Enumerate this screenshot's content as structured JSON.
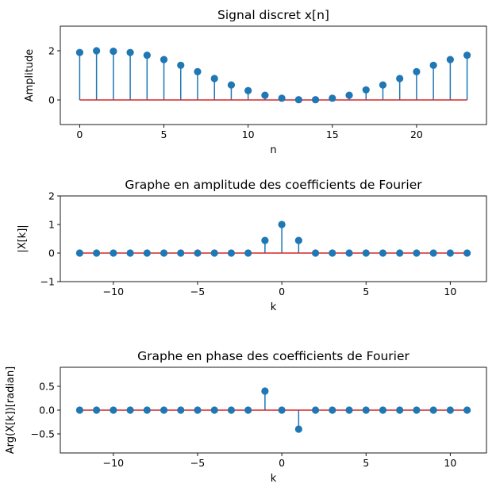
{
  "chart_data": [
    {
      "type": "stem",
      "title": "Signal discret x[n]",
      "xlabel": "n",
      "ylabel": "Amplitude",
      "xlim": [
        -1.15,
        24.15
      ],
      "ylim": [
        -1,
        3
      ],
      "xticks": [
        0,
        5,
        10,
        15,
        20
      ],
      "yticks": [
        0,
        2
      ],
      "x": [
        0,
        1,
        2,
        3,
        4,
        5,
        6,
        7,
        8,
        9,
        10,
        11,
        12,
        13,
        14,
        15,
        16,
        17,
        18,
        19,
        20,
        21,
        22,
        23
      ],
      "values": [
        1.93,
        2.0,
        1.98,
        1.93,
        1.82,
        1.64,
        1.41,
        1.15,
        0.87,
        0.61,
        0.38,
        0.19,
        0.07,
        0.01,
        0.01,
        0.07,
        0.19,
        0.41,
        0.61,
        0.87,
        1.15,
        1.41,
        1.64,
        1.82
      ],
      "baseline": 0,
      "grid": false,
      "colors": {
        "stem": "#1f77b4",
        "baseline": "#d62728"
      }
    },
    {
      "type": "stem",
      "title": "Graphe en amplitude des coefficients de Fourier",
      "xlabel": "k",
      "ylabel": "|X[k]|",
      "xlim": [
        -13.15,
        12.15
      ],
      "ylim": [
        -1,
        2
      ],
      "xticks": [
        -10,
        -5,
        0,
        5,
        10
      ],
      "xtick_labels": [
        "−10",
        "−5",
        "0",
        "5",
        "10"
      ],
      "yticks": [
        -1,
        0,
        1,
        2
      ],
      "ytick_labels": [
        "−1",
        "0",
        "1",
        "2"
      ],
      "x": [
        -12,
        -11,
        -10,
        -9,
        -8,
        -7,
        -6,
        -5,
        -4,
        -3,
        -2,
        -1,
        0,
        1,
        2,
        3,
        4,
        5,
        6,
        7,
        8,
        9,
        10,
        11
      ],
      "values": [
        0,
        0,
        0,
        0,
        0,
        0,
        0,
        0,
        0,
        0,
        0,
        0.44,
        1.0,
        0.44,
        0,
        0,
        0,
        0,
        0,
        0,
        0,
        0,
        0,
        0
      ],
      "baseline": 0,
      "grid": false,
      "colors": {
        "stem": "#1f77b4",
        "baseline": "#d62728"
      }
    },
    {
      "type": "stem",
      "title": "Graphe en phase des coefficients de Fourier",
      "xlabel": "k",
      "ylabel": "Arg(X[k])[radian]",
      "xlim": [
        -13.15,
        12.15
      ],
      "ylim": [
        -0.9,
        0.9
      ],
      "xticks": [
        -10,
        -5,
        0,
        5,
        10
      ],
      "xtick_labels": [
        "−10",
        "−5",
        "0",
        "5",
        "10"
      ],
      "yticks": [
        -0.5,
        0.0,
        0.5
      ],
      "ytick_labels": [
        "−0.5",
        "0.0",
        "0.5"
      ],
      "x": [
        -12,
        -11,
        -10,
        -9,
        -8,
        -7,
        -6,
        -5,
        -4,
        -3,
        -2,
        -1,
        0,
        1,
        2,
        3,
        4,
        5,
        6,
        7,
        8,
        9,
        10,
        11
      ],
      "values": [
        0,
        0,
        0,
        0,
        0,
        0,
        0,
        0,
        0,
        0,
        0,
        0.4,
        0,
        -0.4,
        0,
        0,
        0,
        0,
        0,
        0,
        0,
        0,
        0,
        0
      ],
      "baseline": 0,
      "grid": false,
      "colors": {
        "stem": "#1f77b4",
        "baseline": "#d62728"
      }
    }
  ]
}
